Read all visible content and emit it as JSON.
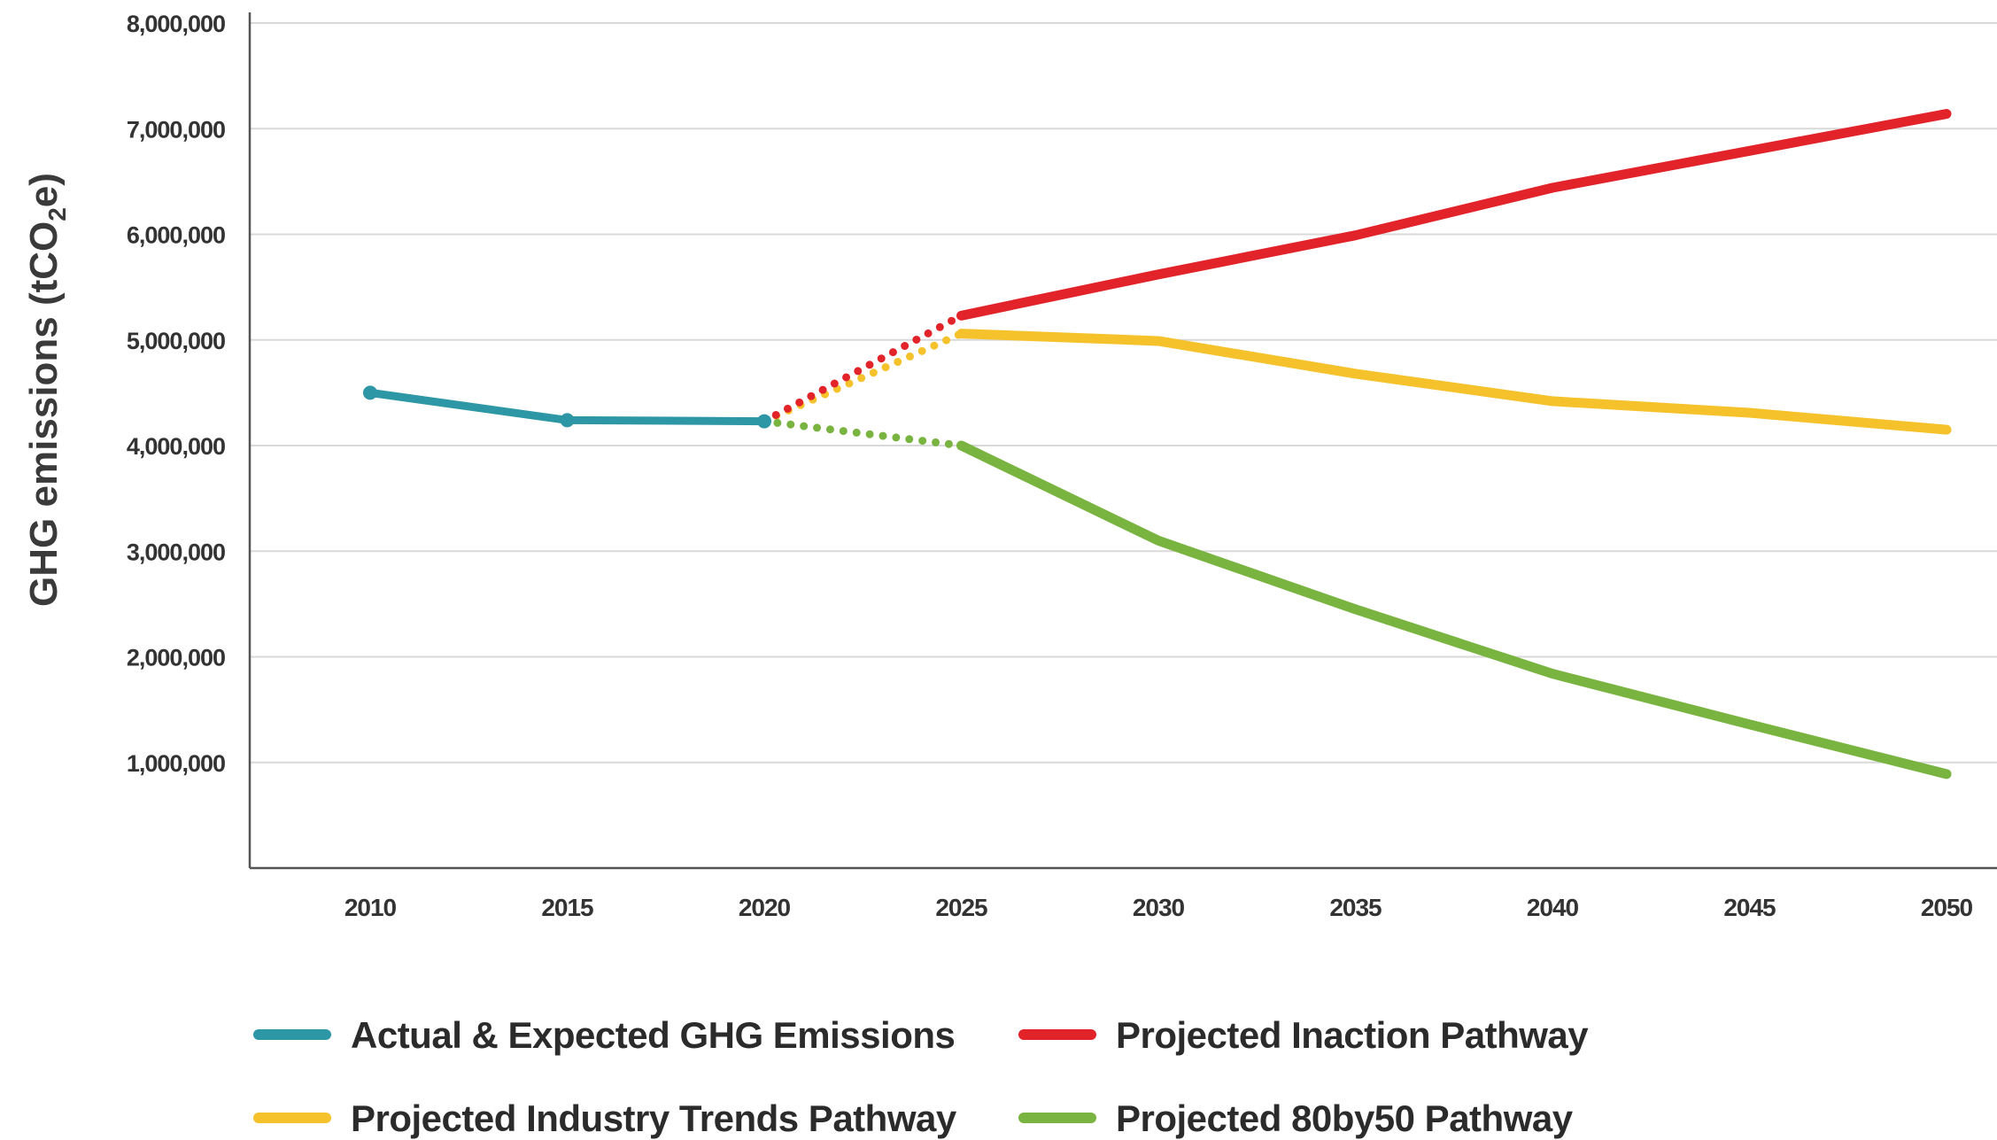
{
  "chart_data": {
    "type": "line",
    "title": "",
    "xlabel": "",
    "ylabel": "GHG emissions (tCO",
    "ylabel_subscript": "2",
    "ylabel_suffix": "e)",
    "xlim": [
      2007,
      2051
    ],
    "ylim": [
      0,
      8000000
    ],
    "grid": true,
    "legend_position": "bottom",
    "x_ticks": [
      2010,
      2015,
      2020,
      2025,
      2030,
      2035,
      2040,
      2045,
      2050
    ],
    "x_tick_labels": [
      "2010",
      "2015",
      "2020",
      "2025",
      "2030",
      "2035",
      "2040",
      "2045",
      "2050"
    ],
    "y_ticks": [
      1000000,
      2000000,
      3000000,
      4000000,
      5000000,
      6000000,
      7000000,
      8000000
    ],
    "y_tick_labels": [
      "1,000,000",
      "2,000,000",
      "3,000,000",
      "4,000,000",
      "5,000,000",
      "6,000,000",
      "7,000,000",
      "8,000,000"
    ],
    "series": [
      {
        "name": "Actual & Expected GHG Emissions",
        "color": "#2e97a6",
        "x": [
          2010,
          2015,
          2020
        ],
        "y": [
          4500000,
          4240000,
          4230000
        ],
        "style": "solid",
        "markers": true
      },
      {
        "name": "Projected Industry Trends Pathway",
        "color": "#f6c22b",
        "x": [
          2020,
          2025,
          2030,
          2035,
          2040,
          2045,
          2050
        ],
        "y": [
          4230000,
          5060000,
          4990000,
          4680000,
          4420000,
          4310000,
          4150000
        ],
        "dashed_until": 2025
      },
      {
        "name": "Projected Inaction Pathway",
        "color": "#e2232a",
        "x": [
          2020,
          2025,
          2030,
          2035,
          2040,
          2045,
          2050
        ],
        "y": [
          4230000,
          5230000,
          5620000,
          5990000,
          6440000,
          6790000,
          7140000
        ],
        "dashed_until": 2025
      },
      {
        "name": "Projected 80by50 Pathway",
        "color": "#79b340",
        "x": [
          2020,
          2025,
          2030,
          2035,
          2040,
          2045,
          2050
        ],
        "y": [
          4230000,
          4000000,
          3100000,
          2450000,
          1840000,
          1360000,
          890000
        ],
        "dashed_until": 2025
      }
    ],
    "legend_order": [
      0,
      2,
      1,
      3
    ]
  }
}
